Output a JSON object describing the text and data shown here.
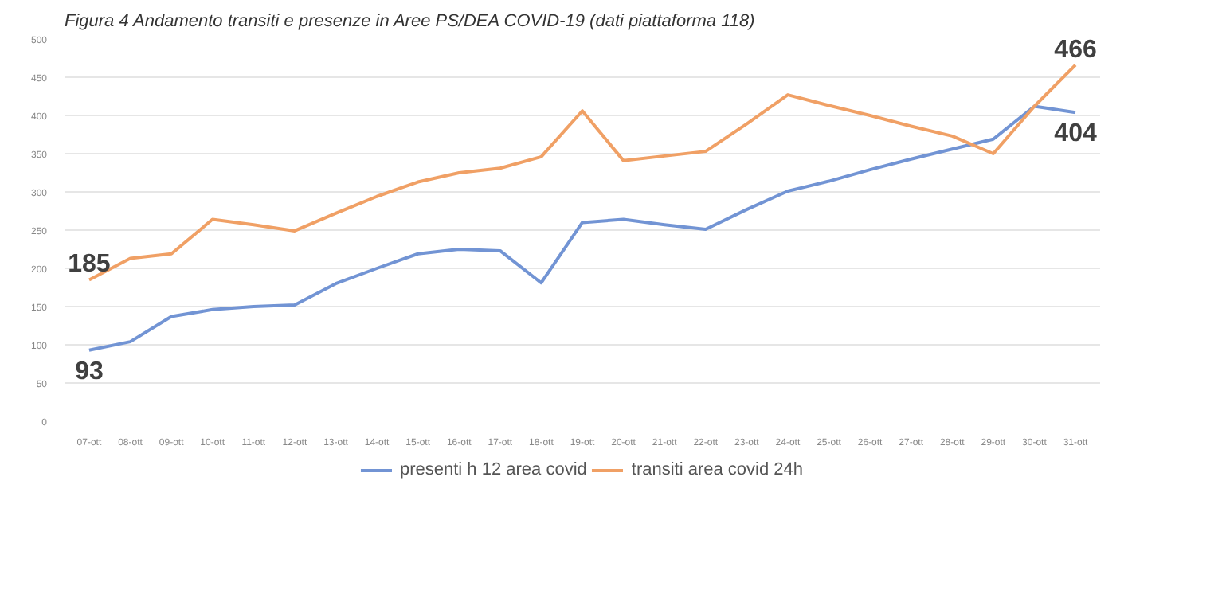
{
  "chart_data": {
    "type": "line",
    "title": "Figura 4 Andamento transiti e presenze in Aree PS/DEA COVID-19 (dati piattaforma 118)",
    "categories": [
      "07-ott",
      "08-ott",
      "09-ott",
      "10-ott",
      "11-ott",
      "12-ott",
      "13-ott",
      "14-ott",
      "15-ott",
      "16-ott",
      "17-ott",
      "18-ott",
      "19-ott",
      "20-ott",
      "21-ott",
      "22-ott",
      "23-ott",
      "24-ott",
      "25-ott",
      "26-ott",
      "27-ott",
      "28-ott",
      "29-ott",
      "30-ott",
      "31-ott"
    ],
    "series": [
      {
        "name": "presenti h 12 area covid",
        "color": "#7294d4",
        "values": [
          93,
          104,
          137,
          146,
          150,
          152,
          180,
          200,
          219,
          225,
          223,
          181,
          260,
          264,
          257,
          251,
          277,
          301,
          314,
          329,
          343,
          356,
          369,
          412,
          404
        ],
        "value_labels": [
          "93",
          null,
          null,
          null,
          null,
          null,
          null,
          null,
          null,
          null,
          null,
          null,
          null,
          null,
          null,
          null,
          null,
          null,
          null,
          null,
          null,
          null,
          null,
          null,
          "404"
        ]
      },
      {
        "name": "transiti area covid 24h",
        "color": "#f0a065",
        "values": [
          185,
          213,
          219,
          264,
          257,
          249,
          272,
          294,
          313,
          325,
          331,
          346,
          406,
          341,
          347,
          353,
          389,
          427,
          413,
          400,
          386,
          373,
          350,
          412,
          466
        ],
        "value_labels": [
          "185",
          null,
          null,
          null,
          null,
          null,
          null,
          null,
          null,
          null,
          null,
          null,
          null,
          null,
          null,
          null,
          null,
          null,
          null,
          null,
          null,
          null,
          null,
          null,
          "466"
        ]
      }
    ],
    "ylim": [
      0,
      500
    ],
    "yticks": [
      0,
      50,
      100,
      150,
      200,
      250,
      300,
      350,
      400,
      450,
      500
    ],
    "grid": "y",
    "legend": "bottom",
    "marker": "none",
    "line_style": "solid"
  }
}
